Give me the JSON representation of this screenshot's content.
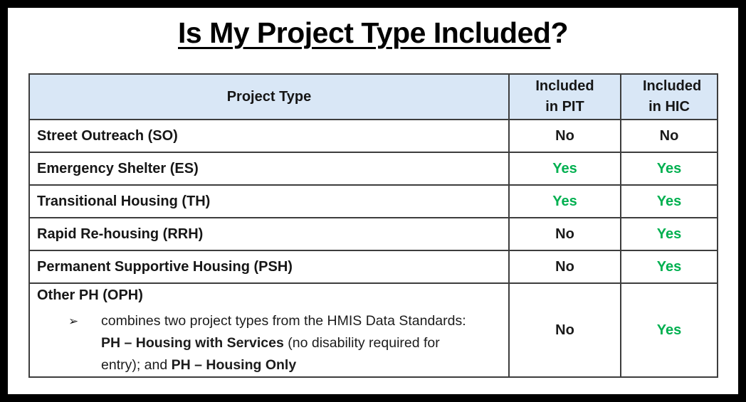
{
  "title": {
    "underlined": "Is My Project Type Included",
    "suffix": "?"
  },
  "table": {
    "headers": [
      "Project Type",
      "Included in PIT",
      "Included in HIC"
    ],
    "rows": [
      {
        "label": "Street Outreach (SO)",
        "pit": "No",
        "hic": "No"
      },
      {
        "label": "Emergency Shelter (ES)",
        "pit": "Yes",
        "hic": "Yes"
      },
      {
        "label": "Transitional Housing (TH)",
        "pit": "Yes",
        "hic": "Yes"
      },
      {
        "label": "Rapid Re-housing (RRH)",
        "pit": "No",
        "hic": "Yes"
      },
      {
        "label": "Permanent Supportive Housing (PSH)",
        "pit": "No",
        "hic": "Yes"
      },
      {
        "label": "Other PH (OPH)",
        "pit": "No",
        "hic": "Yes",
        "bullet_glyph": "➢",
        "bullet_segments": [
          {
            "text": "combines two project types from the HMIS Data Standards: ",
            "bold": false
          },
          {
            "text": "PH – Housing with Services",
            "bold": true
          },
          {
            "text": " (no disability required for entry); and ",
            "bold": false
          },
          {
            "text": "PH – Housing Only",
            "bold": true
          }
        ]
      }
    ]
  },
  "colors": {
    "yes_text": "#00b050",
    "no_text": "#1a1a1a",
    "header_bg": "#d9e7f6",
    "grid_line": "#3d3d3d"
  }
}
